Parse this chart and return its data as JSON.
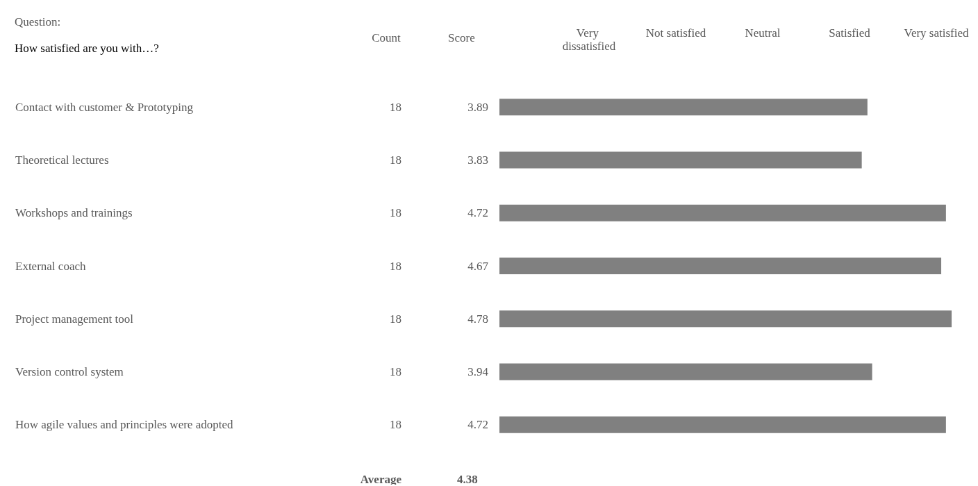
{
  "chart_data": {
    "type": "bar",
    "orientation": "horizontal",
    "title": "Question:",
    "subtitle": "How satisfied are you with…?",
    "categories": [
      "Contact with customer & Prototyping",
      "Theoretical lectures",
      "Workshops and trainings",
      "External coach",
      "Project management tool",
      "Version control system",
      "How agile values and principles were adopted"
    ],
    "values": [
      3.89,
      3.83,
      4.72,
      4.67,
      4.78,
      3.94,
      4.72
    ],
    "color": "#808080",
    "data_labels": true,
    "tick_labels": "y",
    "annotations": [
      "Count",
      "Score",
      "Very dissatisfied",
      "Not satisfied",
      "Neutral",
      "Satisfied",
      "Very satisfied",
      "18",
      "18",
      "18",
      "18",
      "18",
      "18",
      "18",
      "Average",
      "4.38"
    ]
  }
}
